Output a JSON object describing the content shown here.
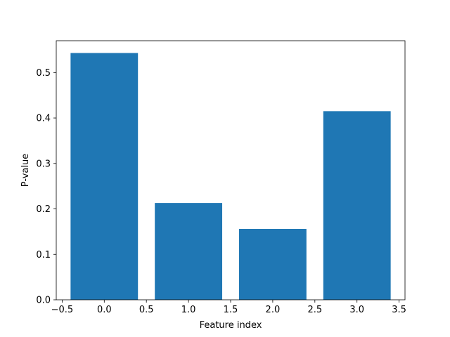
{
  "chart_data": {
    "type": "bar",
    "title": "",
    "xlabel": "Feature index",
    "ylabel": "P-value",
    "x": [
      0,
      1,
      2,
      3
    ],
    "values": [
      0.543,
      0.213,
      0.156,
      0.415
    ],
    "bar_width": 0.8,
    "xlim": [
      -0.57,
      3.57
    ],
    "ylim": [
      0,
      0.57
    ],
    "xticks": [
      -0.5,
      0.0,
      0.5,
      1.0,
      1.5,
      2.0,
      2.5,
      3.0,
      3.5
    ],
    "xtick_labels": [
      "−0.5",
      "0.0",
      "0.5",
      "1.0",
      "1.5",
      "2.0",
      "2.5",
      "3.0",
      "3.5"
    ],
    "yticks": [
      0.0,
      0.1,
      0.2,
      0.3,
      0.4,
      0.5
    ],
    "ytick_labels": [
      "0.0",
      "0.1",
      "0.2",
      "0.3",
      "0.4",
      "0.5"
    ],
    "grid": false,
    "bar_color": "#1f77b4"
  }
}
